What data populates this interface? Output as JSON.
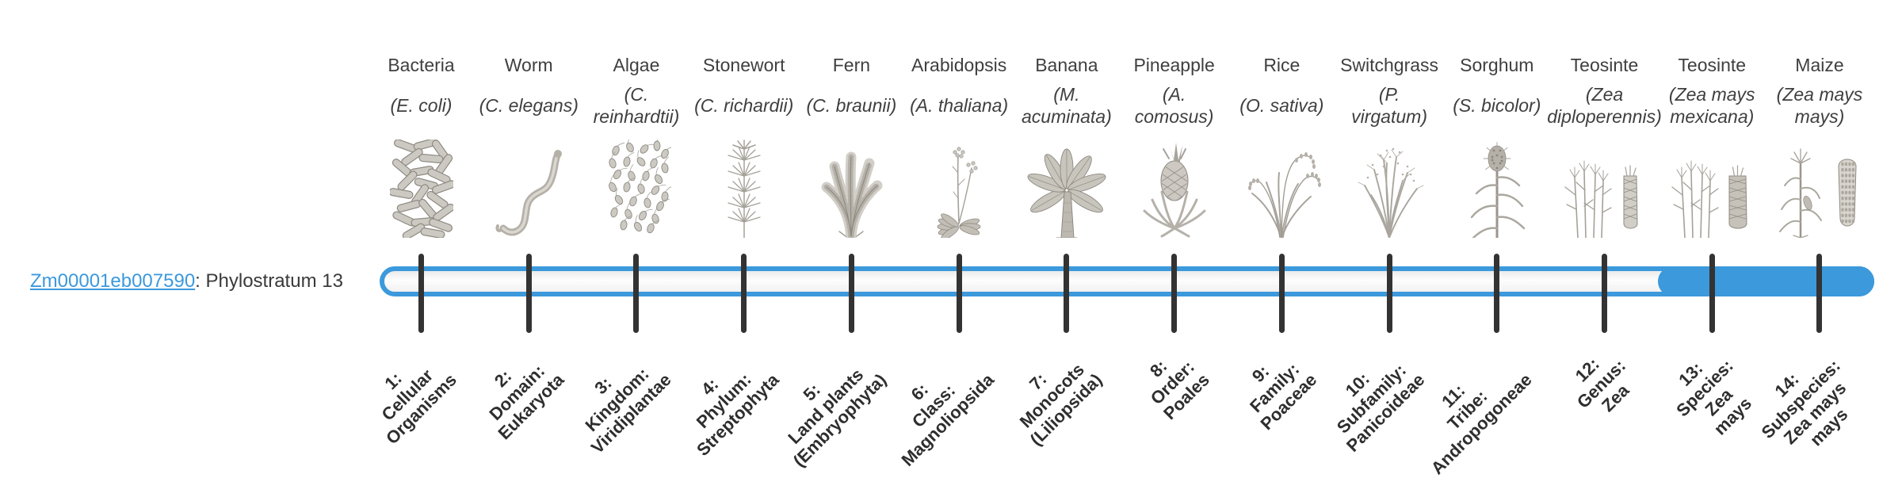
{
  "gene": {
    "id": "Zm00001eb007590",
    "suffix": ": Phylostratum 13",
    "link_color": "#3b99dc"
  },
  "timeline": {
    "track_color": "#3b99dc",
    "tick_color": "#333333",
    "stage_count": 14,
    "fill_start_stage": 13,
    "stages": [
      {
        "index": 1,
        "common_name": "Bacteria",
        "species": "(E. coli)",
        "icon": "bacteria-icon",
        "stage_label": "1:\nCellular\nOrganisms"
      },
      {
        "index": 2,
        "common_name": "Worm",
        "species": "(C. elegans)",
        "icon": "worm-icon",
        "stage_label": "2:\nDomain:\nEukaryota"
      },
      {
        "index": 3,
        "common_name": "Algae",
        "species": "(C.\nreinhardtii)",
        "icon": "algae-icon",
        "stage_label": "3:\nKingdom:\nViridiplantae"
      },
      {
        "index": 4,
        "common_name": "Stonewort",
        "species": "(C. richardii)",
        "icon": "stonewort-icon",
        "stage_label": "4:\nPhylum:\nStreptophyta"
      },
      {
        "index": 5,
        "common_name": "Fern",
        "species": "(C. braunii)",
        "icon": "fern-icon",
        "stage_label": "5:\nLand plants\n(Embryophyta)"
      },
      {
        "index": 6,
        "common_name": "Arabidopsis",
        "species": "(A. thaliana)",
        "icon": "arabidopsis-icon",
        "stage_label": "6:\nClass:\nMagnoliopsida"
      },
      {
        "index": 7,
        "common_name": "Banana",
        "species": "(M.\nacuminata)",
        "icon": "banana-icon",
        "stage_label": "7:\nMonocots\n(Liliopsida)"
      },
      {
        "index": 8,
        "common_name": "Pineapple",
        "species": "(A.\ncomosus)",
        "icon": "pineapple-icon",
        "stage_label": "8:\nOrder:\nPoales"
      },
      {
        "index": 9,
        "common_name": "Rice",
        "species": "(O. sativa)",
        "icon": "rice-icon",
        "stage_label": "9:\nFamily:\nPoaceae"
      },
      {
        "index": 10,
        "common_name": "Switchgrass",
        "species": "(P.\nvirgatum)",
        "icon": "switchgrass-icon",
        "stage_label": "10:\nSubfamily:\nPanicoideae"
      },
      {
        "index": 11,
        "common_name": "Sorghum",
        "species": "(S. bicolor)",
        "icon": "sorghum-icon",
        "stage_label": "11:\nTribe:\nAndropogoneae"
      },
      {
        "index": 12,
        "common_name": "Teosinte",
        "species": "(Zea\ndiploperennis)",
        "icon": "teosinte-diploperennis-icon",
        "stage_label": "12:\nGenus:\nZea"
      },
      {
        "index": 13,
        "common_name": "Teosinte",
        "species": "(Zea mays\nmexicana)",
        "icon": "teosinte-mexicana-icon",
        "stage_label": "13:\nSpecies:\nZea\nmays"
      },
      {
        "index": 14,
        "common_name": "Maize",
        "species": "(Zea mays\nmays)",
        "icon": "maize-icon",
        "stage_label": "14:\nSubspecies:\nZea mays\nmays"
      }
    ]
  }
}
